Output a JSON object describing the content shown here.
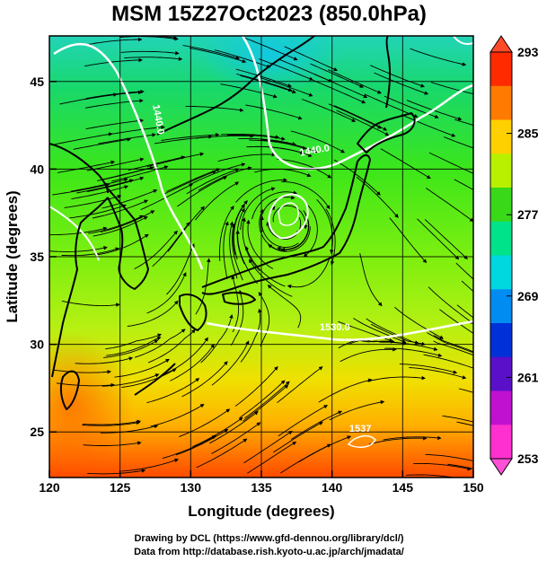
{
  "title": "MSM 15Z27Oct2023 (850.0hPa)",
  "credit": {
    "line1": "Drawing by DCL (https://www.gfd-dennou.org/library/dcl/)",
    "line2": "Data from http://database.rish.kyoto-u.ac.jp/arch/jmadata/"
  },
  "map": {
    "xlabel": "Longitude (degrees)",
    "ylabel": "Latitude  (degrees)",
    "lon_range": [
      120,
      150
    ],
    "lat_range": [
      22.4,
      47.6
    ],
    "lon_ticks": [
      120,
      125,
      130,
      135,
      140,
      145,
      150
    ],
    "lat_ticks": [
      25,
      30,
      35,
      40,
      45
    ],
    "lon_tick_labels": [
      "120",
      "125",
      "130",
      "135",
      "140",
      "145",
      "150"
    ],
    "lat_tick_labels": [
      "25",
      "30",
      "35",
      "40",
      "45"
    ],
    "field": "temperature",
    "overlay": "streamlines",
    "contour_labels": [
      {
        "text": "1440.0",
        "lon": 127.5,
        "lat": 42.8,
        "rotate": 80
      },
      {
        "text": "1440.0",
        "lon": 138.8,
        "lat": 40.9,
        "rotate": -10
      },
      {
        "text": "1530.0",
        "lon": 140.2,
        "lat": 30.8,
        "rotate": 0
      },
      {
        "text": "1537",
        "lon": 142.0,
        "lat": 25.0,
        "rotate": 0
      }
    ]
  },
  "colorbar": {
    "tick_labels": [
      "293",
      "285",
      "277",
      "269",
      "261",
      "253"
    ],
    "range": [
      253,
      293
    ],
    "colors": [
      "#ff2a00",
      "#ff7a00",
      "#ffd000",
      "#b8f000",
      "#39d919",
      "#00e38a",
      "#00d8e0",
      "#008cf0",
      "#0030d8",
      "#5a10c8",
      "#c010d0",
      "#ff30d0"
    ]
  }
}
